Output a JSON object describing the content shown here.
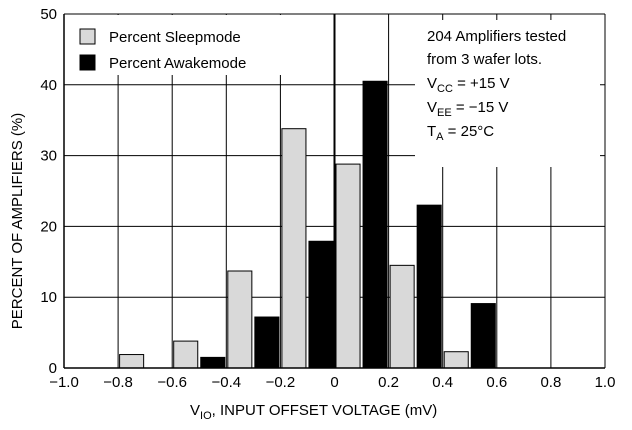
{
  "chart_data": {
    "type": "bar",
    "xlabel": {
      "prefix": "V",
      "sub": "IO",
      "rest": ", INPUT OFFSET VOLTAGE (mV)"
    },
    "ylabel": "PERCENT OF AMPLIFIERS (%)",
    "xlim": [
      -1.0,
      1.0
    ],
    "ylim": [
      0,
      50
    ],
    "x_ticks": [
      "−1.0",
      "−0.8",
      "−0.6",
      "−0.4",
      "−0.2",
      "0",
      "0.2",
      "0.4",
      "0.6",
      "0.8",
      "1.0"
    ],
    "y_ticks": [
      "0",
      "10",
      "20",
      "30",
      "40",
      "50"
    ],
    "grid": true,
    "legend_position": "top-left",
    "series": [
      {
        "name": "Percent Sleepmode",
        "color": "#d9d9d9",
        "bars": [
          {
            "x0": -0.8,
            "x1": -0.7,
            "value": 1.9
          },
          {
            "x0": -0.6,
            "x1": -0.5,
            "value": 3.8
          },
          {
            "x0": -0.4,
            "x1": -0.3,
            "value": 13.7
          },
          {
            "x0": -0.2,
            "x1": -0.1,
            "value": 33.8
          },
          {
            "x0": 0.0,
            "x1": 0.1,
            "value": 28.8
          },
          {
            "x0": 0.2,
            "x1": 0.3,
            "value": 14.5
          },
          {
            "x0": 0.4,
            "x1": 0.5,
            "value": 2.3
          }
        ]
      },
      {
        "name": "Percent Awakemode",
        "color": "#000000",
        "bars": [
          {
            "x0": -0.5,
            "x1": -0.4,
            "value": 1.5
          },
          {
            "x0": -0.3,
            "x1": -0.2,
            "value": 7.2
          },
          {
            "x0": -0.1,
            "x1": 0.0,
            "value": 17.9
          },
          {
            "x0": 0.1,
            "x1": 0.2,
            "value": 40.5
          },
          {
            "x0": 0.3,
            "x1": 0.4,
            "value": 23.0
          },
          {
            "x0": 0.5,
            "x1": 0.6,
            "value": 9.1
          }
        ]
      }
    ],
    "annotations": {
      "line1": "204 Amplifiers tested",
      "line2": "from 3 wafer lots.",
      "vcc": {
        "prefix": "V",
        "sub": "CC",
        "rest": " = +15 V"
      },
      "vee": {
        "prefix": "V",
        "sub": "EE",
        "rest": " = −15 V"
      },
      "ta": {
        "prefix": "T",
        "sub": "A",
        "rest": " = 25°C"
      }
    }
  }
}
